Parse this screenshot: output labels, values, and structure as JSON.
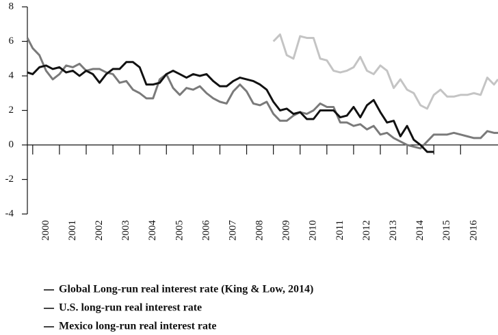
{
  "chart_data": {
    "type": "line",
    "x": [
      1999.8,
      2000,
      2000.25,
      2000.5,
      2000.75,
      2001,
      2001.25,
      2001.5,
      2001.75,
      2002,
      2002.25,
      2002.5,
      2002.75,
      2003,
      2003.25,
      2003.5,
      2003.75,
      2004,
      2004.25,
      2004.5,
      2004.75,
      2005,
      2005.25,
      2005.5,
      2005.75,
      2006,
      2006.25,
      2006.5,
      2006.75,
      2007,
      2007.25,
      2007.5,
      2007.75,
      2008,
      2008.25,
      2008.5,
      2008.75,
      2009,
      2009.25,
      2009.5,
      2009.75,
      2010,
      2010.25,
      2010.5,
      2010.75,
      2011,
      2011.25,
      2011.5,
      2011.75,
      2012,
      2012.25,
      2012.5,
      2012.75,
      2013,
      2013.25,
      2013.5,
      2013.75,
      2014,
      2014.25,
      2014.5,
      2014.75,
      2015,
      2015.25,
      2015.5,
      2015.75,
      2016,
      2016.25,
      2016.5,
      2016.75,
      2017,
      2017.25,
      2017.4
    ],
    "series": [
      {
        "name": "Global Long-run real interest rate (King & Low, 2014)",
        "color": "#111111",
        "values": [
          4.2,
          4.1,
          4.5,
          4.6,
          4.4,
          4.5,
          4.2,
          4.3,
          4.0,
          4.3,
          4.1,
          3.6,
          4.1,
          4.4,
          4.4,
          4.8,
          4.8,
          4.5,
          3.5,
          3.5,
          3.6,
          4.1,
          4.3,
          4.1,
          3.9,
          4.1,
          4.0,
          4.1,
          3.7,
          3.4,
          3.4,
          3.7,
          3.9,
          3.8,
          3.7,
          3.5,
          3.2,
          2.5,
          2.0,
          2.1,
          1.8,
          1.9,
          1.5,
          1.5,
          2.0,
          2.0,
          2.0,
          1.6,
          1.7,
          2.2,
          1.6,
          2.3,
          2.6,
          1.9,
          1.3,
          1.4,
          0.5,
          1.1,
          0.3,
          0.0,
          -0.4,
          -0.4,
          null,
          null,
          null,
          null,
          null,
          null,
          null,
          null,
          null,
          null
        ]
      },
      {
        "name": "U.S. long-run real interest rate",
        "color": "#7a7a7a",
        "values": [
          6.2,
          5.6,
          5.2,
          4.3,
          3.8,
          4.1,
          4.6,
          4.5,
          4.7,
          4.3,
          4.4,
          4.4,
          4.2,
          4.1,
          3.6,
          3.7,
          3.2,
          3.0,
          2.7,
          2.7,
          3.8,
          4.1,
          3.3,
          2.9,
          3.3,
          3.2,
          3.4,
          3.0,
          2.7,
          2.5,
          2.4,
          3.1,
          3.5,
          3.1,
          2.4,
          2.3,
          2.5,
          1.8,
          1.4,
          1.4,
          1.7,
          1.9,
          1.8,
          2.0,
          2.4,
          2.2,
          2.2,
          1.3,
          1.3,
          1.1,
          1.2,
          0.9,
          1.1,
          0.6,
          0.7,
          0.4,
          0.2,
          0.0,
          -0.1,
          -0.2,
          0.2,
          0.6,
          0.6,
          0.6,
          0.7,
          0.6,
          0.5,
          0.4,
          0.4,
          0.8,
          0.7,
          0.7
        ]
      },
      {
        "name": "Mexico long-run real interest rate",
        "color": "#c4c4c4",
        "values": [
          null,
          null,
          null,
          null,
          null,
          null,
          null,
          null,
          null,
          null,
          null,
          null,
          null,
          null,
          null,
          null,
          null,
          null,
          null,
          null,
          null,
          null,
          null,
          null,
          null,
          null,
          null,
          null,
          null,
          null,
          null,
          null,
          null,
          null,
          null,
          null,
          null,
          6.0,
          6.4,
          5.2,
          5.0,
          6.3,
          6.2,
          6.2,
          5.0,
          4.9,
          4.3,
          4.2,
          4.3,
          4.5,
          5.1,
          4.3,
          4.1,
          4.6,
          4.3,
          3.3,
          3.8,
          3.2,
          3.0,
          2.3,
          2.1,
          2.9,
          3.2,
          2.8,
          2.8,
          2.9,
          2.9,
          3.0,
          2.9,
          3.9,
          3.5,
          3.8
        ]
      }
    ],
    "xlim": [
      1999.8,
      2017.4
    ],
    "xticks": [
      2000,
      2001,
      2002,
      2003,
      2004,
      2005,
      2006,
      2007,
      2008,
      2009,
      2010,
      2011,
      2012,
      2013,
      2014,
      2015,
      2016
    ],
    "ylim": [
      -4,
      8
    ],
    "yticks": [
      -4,
      -2,
      0,
      2,
      4,
      6,
      8
    ]
  }
}
